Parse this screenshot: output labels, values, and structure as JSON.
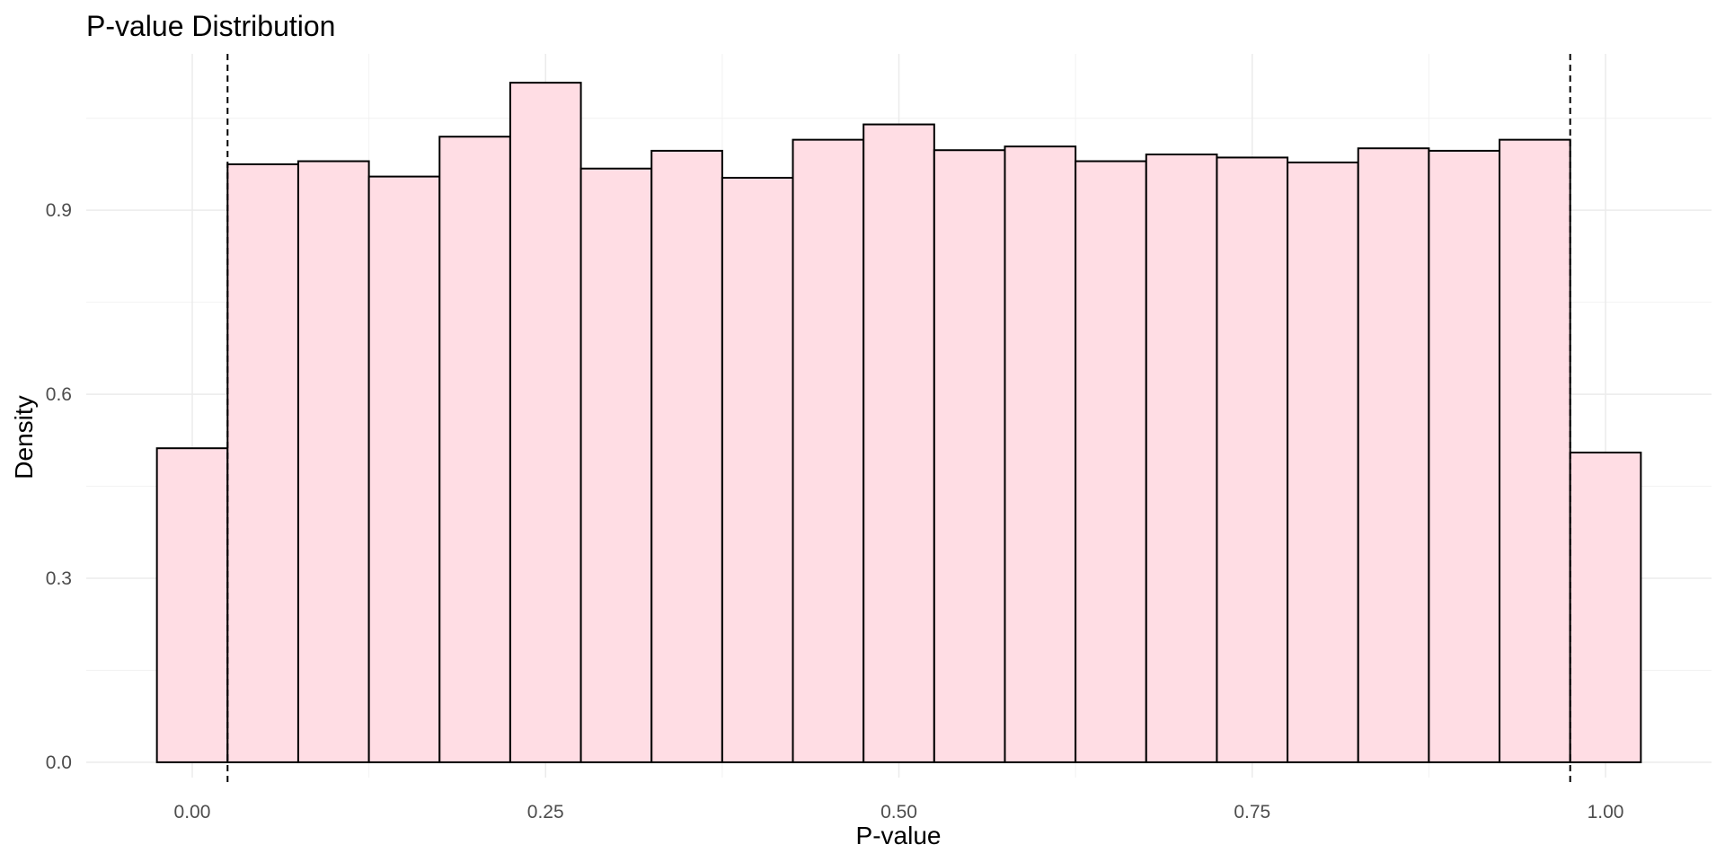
{
  "chart_data": {
    "type": "bar",
    "title": "P-value Distribution",
    "xlabel": "P-value",
    "ylabel": "Density",
    "xlim": [
      -0.075,
      1.075
    ],
    "ylim": [
      -0.025,
      1.155
    ],
    "x_ticks": [
      0.0,
      0.25,
      0.5,
      0.75,
      1.0
    ],
    "x_tick_labels": [
      "0.00",
      "0.25",
      "0.50",
      "0.75",
      "1.00"
    ],
    "x_minor_ticks": [
      0.125,
      0.375,
      0.625,
      0.875
    ],
    "y_ticks": [
      0.0,
      0.3,
      0.6,
      0.9
    ],
    "y_tick_labels": [
      "0.0",
      "0.3",
      "0.6",
      "0.9"
    ],
    "y_minor_ticks": [
      0.15,
      0.45,
      0.75,
      1.05
    ],
    "bin_width": 0.05,
    "bins": [
      {
        "x_start": -0.025,
        "x_end": 0.025,
        "density": 0.512
      },
      {
        "x_start": 0.025,
        "x_end": 0.075,
        "density": 0.975
      },
      {
        "x_start": 0.075,
        "x_end": 0.125,
        "density": 0.98
      },
      {
        "x_start": 0.125,
        "x_end": 0.175,
        "density": 0.955
      },
      {
        "x_start": 0.175,
        "x_end": 0.225,
        "density": 1.02
      },
      {
        "x_start": 0.225,
        "x_end": 0.275,
        "density": 1.108
      },
      {
        "x_start": 0.275,
        "x_end": 0.325,
        "density": 0.968
      },
      {
        "x_start": 0.325,
        "x_end": 0.375,
        "density": 0.997
      },
      {
        "x_start": 0.375,
        "x_end": 0.425,
        "density": 0.953
      },
      {
        "x_start": 0.425,
        "x_end": 0.475,
        "density": 1.015
      },
      {
        "x_start": 0.475,
        "x_end": 0.525,
        "density": 1.04
      },
      {
        "x_start": 0.525,
        "x_end": 0.575,
        "density": 0.998
      },
      {
        "x_start": 0.575,
        "x_end": 0.625,
        "density": 1.004
      },
      {
        "x_start": 0.625,
        "x_end": 0.675,
        "density": 0.98
      },
      {
        "x_start": 0.675,
        "x_end": 0.725,
        "density": 0.991
      },
      {
        "x_start": 0.725,
        "x_end": 0.775,
        "density": 0.986
      },
      {
        "x_start": 0.775,
        "x_end": 0.825,
        "density": 0.978
      },
      {
        "x_start": 0.825,
        "x_end": 0.875,
        "density": 1.001
      },
      {
        "x_start": 0.875,
        "x_end": 0.925,
        "density": 0.997
      },
      {
        "x_start": 0.925,
        "x_end": 0.975,
        "density": 1.015
      },
      {
        "x_start": 0.975,
        "x_end": 1.025,
        "density": 0.505
      }
    ],
    "reference_lines": [
      0.025,
      0.975
    ],
    "grid": true,
    "legend": "none",
    "colors": {
      "bar_fill": "#FFDDE4",
      "bar_stroke": "#000000",
      "grid_major": "#EBEBEB",
      "grid_minor": "#F2F2F2",
      "reference_line": "#000000"
    }
  }
}
